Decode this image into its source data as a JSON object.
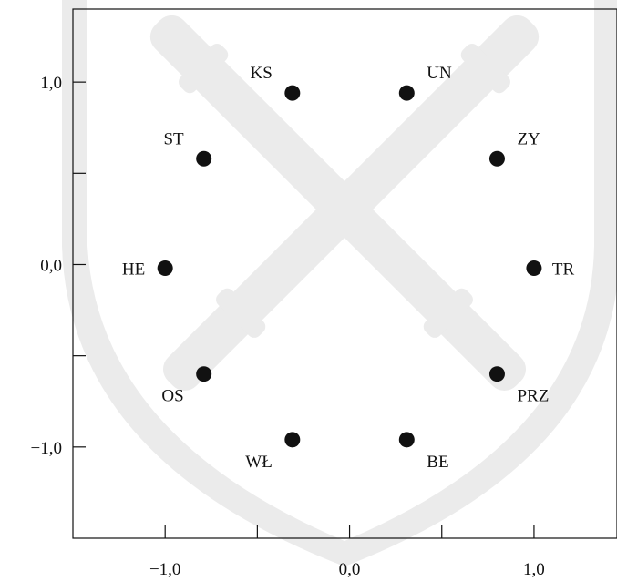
{
  "chart_data": {
    "type": "scatter",
    "title": "",
    "xlabel": "",
    "ylabel": "",
    "xlim": [
      -1.5,
      1.45
    ],
    "ylim": [
      -1.5,
      1.4
    ],
    "grid": false,
    "x_ticks": [
      -1.0,
      -0.5,
      0.0,
      0.5,
      1.0
    ],
    "y_ticks": [
      1.0,
      0.5,
      0.0,
      -0.5,
      -1.0
    ],
    "x_tick_labels": [
      "−1,0",
      "",
      "0,0",
      "",
      "1,0"
    ],
    "y_tick_labels": [
      "1,0",
      "",
      "0,0",
      "",
      "−1,0"
    ],
    "points": [
      {
        "label": "KS",
        "x": -0.31,
        "y": 0.94,
        "label_pos": "nw"
      },
      {
        "label": "UN",
        "x": 0.31,
        "y": 0.94,
        "label_pos": "ne"
      },
      {
        "label": "ST",
        "x": -0.79,
        "y": 0.58,
        "label_pos": "nw"
      },
      {
        "label": "ZY",
        "x": 0.8,
        "y": 0.58,
        "label_pos": "ne"
      },
      {
        "label": "HE",
        "x": -1.0,
        "y": -0.02,
        "label_pos": "w"
      },
      {
        "label": "TR",
        "x": 1.0,
        "y": -0.02,
        "label_pos": "e"
      },
      {
        "label": "OS",
        "x": -0.79,
        "y": -0.6,
        "label_pos": "sw"
      },
      {
        "label": "PRZ",
        "x": 0.8,
        "y": -0.6,
        "label_pos": "se"
      },
      {
        "label": "WŁ",
        "x": -0.31,
        "y": -0.96,
        "label_pos": "sw"
      },
      {
        "label": "BE",
        "x": 0.31,
        "y": -0.96,
        "label_pos": "se"
      }
    ],
    "colors": {
      "point": "#111111",
      "axis": "#111111",
      "watermark": "#ebebeb"
    }
  }
}
